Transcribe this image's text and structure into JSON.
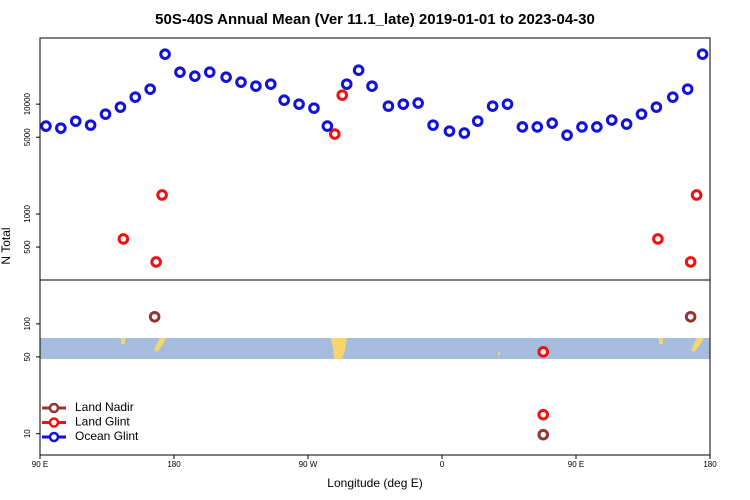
{
  "chart_data": {
    "type": "scatter",
    "title": "50S-40S Annual Mean (Ver 11.1_late)   2019-01-01 to 2023-04-30",
    "x_label": "Longitude (deg E)",
    "y_label": "N Total",
    "xlim": [
      90,
      540
    ],
    "xticks": [
      {
        "value": 90,
        "label": "90 E"
      },
      180,
      {
        "value": 270,
        "label": "90 W"
      },
      {
        "value": 360,
        "label": "0"
      },
      {
        "value": 450,
        "label": "90 E"
      },
      {
        "value": 540,
        "label": "180"
      }
    ],
    "ylim": [
      6.4,
      40000
    ],
    "yticks": [
      10,
      50,
      100,
      500,
      1000,
      5000,
      10000
    ],
    "log_y": true,
    "legend": "bottom-left",
    "series": [
      {
        "name": "Land Nadir",
        "color": "#943434",
        "x": [
          167,
          527,
          428
        ],
        "values": [
          116,
          116,
          9.8
        ]
      },
      {
        "name": "Land Glint",
        "color": "#ee1111",
        "x": [
          146,
          168,
          172,
          288,
          293,
          428,
          428,
          505,
          527,
          531
        ],
        "values": [
          593,
          366,
          1490,
          5340,
          12080,
          55.6,
          14.9,
          593,
          366,
          1490
        ]
      },
      {
        "name": "Ocean Glint",
        "color": "#1111dd",
        "x": [
          94,
          104,
          114,
          124,
          134,
          144,
          154,
          164,
          174,
          184,
          194,
          204,
          215,
          225,
          235,
          245,
          254,
          264,
          274,
          283,
          296,
          304,
          313,
          324,
          334,
          344,
          354,
          365,
          375,
          384,
          394,
          404,
          414,
          424,
          434,
          444,
          454,
          464,
          474,
          484,
          494,
          504,
          515,
          525,
          535
        ],
        "values": [
          6310,
          6050,
          7000,
          6440,
          8110,
          9390,
          11580,
          13690,
          28500,
          19540,
          17970,
          19540,
          17600,
          15850,
          14580,
          15200,
          10860,
          10000,
          9200,
          6310,
          15200,
          20370,
          14580,
          9590,
          10000,
          10230,
          6440,
          5680,
          5450,
          7000,
          9590,
          10000,
          6200,
          6200,
          6710,
          5220,
          6200,
          6200,
          7160,
          6580,
          8110,
          9390,
          11580,
          13690,
          28500
        ]
      }
    ]
  }
}
